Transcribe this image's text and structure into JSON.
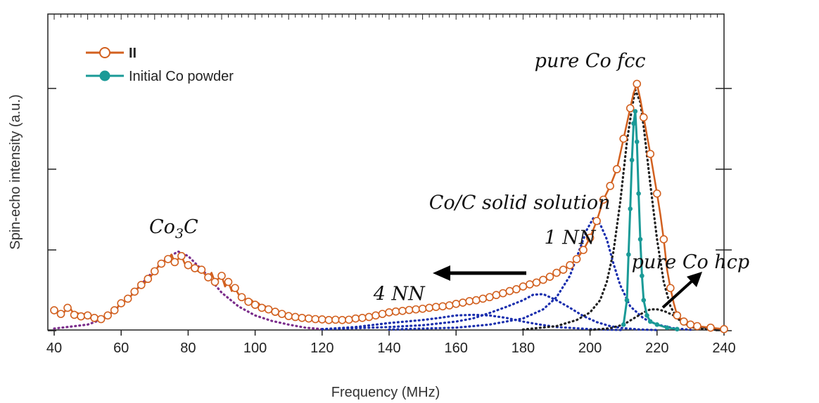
{
  "chart_data": {
    "type": "line",
    "title": "",
    "xlabel": "Frequency (MHz)",
    "ylabel": "Spin-echo intensity (a.u.)",
    "xlim": [
      40,
      240
    ],
    "ylim": [
      0,
      1
    ],
    "x_ticks": [
      "40",
      "60",
      "80",
      "100",
      "120",
      "140",
      "160",
      "180",
      "200",
      "220",
      "240"
    ],
    "legend_position": "top-left",
    "grid": false,
    "series": [
      {
        "name": "II",
        "style": "line-open-markers",
        "color": "#d2601f",
        "points": [
          [
            40,
            0.067
          ],
          [
            41,
            0.058
          ],
          [
            42,
            0.055
          ],
          [
            43,
            0.061
          ],
          [
            44,
            0.075
          ],
          [
            45,
            0.07
          ],
          [
            46,
            0.052
          ],
          [
            47,
            0.058
          ],
          [
            48,
            0.047
          ],
          [
            49,
            0.055
          ],
          [
            50,
            0.05
          ],
          [
            51,
            0.04
          ],
          [
            52,
            0.042
          ],
          [
            53,
            0.035
          ],
          [
            54,
            0.038
          ],
          [
            55,
            0.045
          ],
          [
            56,
            0.05
          ],
          [
            57,
            0.058
          ],
          [
            58,
            0.067
          ],
          [
            59,
            0.078
          ],
          [
            60,
            0.09
          ],
          [
            61,
            0.095
          ],
          [
            62,
            0.105
          ],
          [
            63,
            0.115
          ],
          [
            64,
            0.128
          ],
          [
            65,
            0.14
          ],
          [
            66,
            0.15
          ],
          [
            67,
            0.155
          ],
          [
            68,
            0.17
          ],
          [
            69,
            0.18
          ],
          [
            70,
            0.195
          ],
          [
            71,
            0.21
          ],
          [
            72,
            0.22
          ],
          [
            73,
            0.228
          ],
          [
            74,
            0.235
          ],
          [
            75,
            0.25
          ],
          [
            76,
            0.225
          ],
          [
            77,
            0.235
          ],
          [
            78,
            0.245
          ],
          [
            79,
            0.22
          ],
          [
            80,
            0.215
          ],
          [
            81,
            0.21
          ],
          [
            82,
            0.205
          ],
          [
            83,
            0.195
          ],
          [
            84,
            0.2
          ],
          [
            85,
            0.185
          ],
          [
            86,
            0.175
          ],
          [
            87,
            0.19
          ],
          [
            88,
            0.16
          ],
          [
            89,
            0.17
          ],
          [
            90,
            0.18
          ],
          [
            91,
            0.145
          ],
          [
            92,
            0.16
          ],
          [
            93,
            0.13
          ],
          [
            94,
            0.14
          ],
          [
            95,
            0.12
          ],
          [
            96,
            0.11
          ],
          [
            97,
            0.105
          ],
          [
            98,
            0.095
          ],
          [
            99,
            0.1
          ],
          [
            100,
            0.085
          ],
          [
            101,
            0.09
          ],
          [
            102,
            0.075
          ],
          [
            103,
            0.08
          ],
          [
            104,
            0.07
          ],
          [
            105,
            0.065
          ],
          [
            106,
            0.062
          ],
          [
            107,
            0.058
          ],
          [
            108,
            0.055
          ],
          [
            109,
            0.05
          ],
          [
            110,
            0.048
          ],
          [
            112,
            0.045
          ],
          [
            114,
            0.042
          ],
          [
            116,
            0.04
          ],
          [
            118,
            0.038
          ],
          [
            120,
            0.037
          ],
          [
            122,
            0.035
          ],
          [
            124,
            0.036
          ],
          [
            126,
            0.035
          ],
          [
            128,
            0.036
          ],
          [
            130,
            0.04
          ],
          [
            132,
            0.042
          ],
          [
            134,
            0.045
          ],
          [
            136,
            0.05
          ],
          [
            138,
            0.055
          ],
          [
            140,
            0.06
          ],
          [
            142,
            0.063
          ],
          [
            144,
            0.065
          ],
          [
            146,
            0.068
          ],
          [
            148,
            0.07
          ],
          [
            150,
            0.072
          ],
          [
            152,
            0.075
          ],
          [
            154,
            0.078
          ],
          [
            156,
            0.08
          ],
          [
            158,
            0.083
          ],
          [
            160,
            0.088
          ],
          [
            162,
            0.092
          ],
          [
            164,
            0.097
          ],
          [
            166,
            0.1
          ],
          [
            168,
            0.105
          ],
          [
            170,
            0.11
          ],
          [
            172,
            0.117
          ],
          [
            174,
            0.123
          ],
          [
            176,
            0.13
          ],
          [
            178,
            0.136
          ],
          [
            180,
            0.145
          ],
          [
            182,
            0.152
          ],
          [
            184,
            0.158
          ],
          [
            186,
            0.167
          ],
          [
            188,
            0.177
          ],
          [
            190,
            0.19
          ],
          [
            192,
            0.2
          ],
          [
            194,
            0.215
          ],
          [
            196,
            0.235
          ],
          [
            198,
            0.265
          ],
          [
            200,
            0.305
          ],
          [
            202,
            0.36
          ],
          [
            204,
            0.43
          ],
          [
            206,
            0.475
          ],
          [
            208,
            0.53
          ],
          [
            210,
            0.63
          ],
          [
            212,
            0.73
          ],
          [
            213,
            0.78
          ],
          [
            214,
            0.81
          ],
          [
            215,
            0.76
          ],
          [
            216,
            0.7
          ],
          [
            218,
            0.58
          ],
          [
            220,
            0.45
          ],
          [
            221,
            0.38
          ],
          [
            222,
            0.3
          ],
          [
            223,
            0.2
          ],
          [
            224,
            0.14
          ],
          [
            225,
            0.09
          ],
          [
            226,
            0.05
          ],
          [
            228,
            0.03
          ],
          [
            230,
            0.02
          ],
          [
            232,
            0.015
          ],
          [
            236,
            0.01
          ],
          [
            240,
            0.005
          ]
        ]
      },
      {
        "name": "Initial Co powder",
        "style": "line-filled-markers",
        "color": "#1a9a97",
        "points": [
          [
            210,
            0.02
          ],
          [
            211,
            0.1
          ],
          [
            211.5,
            0.25
          ],
          [
            212,
            0.4
          ],
          [
            212.5,
            0.56
          ],
          [
            213,
            0.68
          ],
          [
            213.5,
            0.72
          ],
          [
            214,
            0.62
          ],
          [
            214.5,
            0.45
          ],
          [
            215,
            0.3
          ],
          [
            215.5,
            0.18
          ],
          [
            216,
            0.1
          ],
          [
            217,
            0.05
          ],
          [
            218,
            0.03
          ],
          [
            220,
            0.02
          ],
          [
            223,
            0.01
          ],
          [
            226,
            0.005
          ]
        ]
      },
      {
        "name": "Co3C",
        "style": "dotted",
        "color": "#7b2d8b",
        "points": [
          [
            40,
            0.007
          ],
          [
            50,
            0.02
          ],
          [
            55,
            0.04
          ],
          [
            60,
            0.085
          ],
          [
            65,
            0.14
          ],
          [
            70,
            0.2
          ],
          [
            74,
            0.24
          ],
          [
            77,
            0.26
          ],
          [
            80,
            0.245
          ],
          [
            85,
            0.19
          ],
          [
            90,
            0.125
          ],
          [
            95,
            0.08
          ],
          [
            100,
            0.05
          ],
          [
            105,
            0.032
          ],
          [
            110,
            0.02
          ],
          [
            115,
            0.01
          ],
          [
            120,
            0.005
          ]
        ]
      },
      {
        "name": "4 NN",
        "style": "dotted",
        "color": "#1a2fae",
        "points": [
          [
            120,
            0.005
          ],
          [
            130,
            0.012
          ],
          [
            140,
            0.025
          ],
          [
            150,
            0.035
          ],
          [
            155,
            0.042
          ],
          [
            160,
            0.05
          ],
          [
            165,
            0.052
          ],
          [
            170,
            0.05
          ],
          [
            175,
            0.042
          ],
          [
            180,
            0.03
          ],
          [
            185,
            0.02
          ],
          [
            190,
            0.012
          ],
          [
            200,
            0.005
          ],
          [
            210,
            0.002
          ]
        ]
      },
      {
        "name": "1 NN",
        "style": "dotted",
        "color": "#1a2fae",
        "points": [
          [
            120,
            0.005
          ],
          [
            130,
            0.008
          ],
          [
            140,
            0.012
          ],
          [
            150,
            0.018
          ],
          [
            160,
            0.03
          ],
          [
            165,
            0.04
          ],
          [
            170,
            0.058
          ],
          [
            175,
            0.078
          ],
          [
            180,
            0.1
          ],
          [
            183,
            0.118
          ],
          [
            186,
            0.12
          ],
          [
            190,
            0.1
          ],
          [
            194,
            0.075
          ],
          [
            198,
            0.048
          ],
          [
            202,
            0.028
          ],
          [
            206,
            0.015
          ],
          [
            210,
            0.008
          ],
          [
            215,
            0.004
          ],
          [
            220,
            0.002
          ]
        ]
      },
      {
        "name": "Co/C solid solution",
        "style": "dotted",
        "color": "#1a2fae",
        "points": [
          [
            140,
            0.004
          ],
          [
            160,
            0.01
          ],
          [
            170,
            0.02
          ],
          [
            180,
            0.04
          ],
          [
            186,
            0.07
          ],
          [
            190,
            0.11
          ],
          [
            194,
            0.18
          ],
          [
            197,
            0.27
          ],
          [
            199,
            0.33
          ],
          [
            201,
            0.37
          ],
          [
            203,
            0.35
          ],
          [
            205,
            0.3
          ],
          [
            207,
            0.22
          ],
          [
            209,
            0.15
          ],
          [
            212,
            0.08
          ],
          [
            216,
            0.04
          ],
          [
            220,
            0.02
          ],
          [
            225,
            0.008
          ],
          [
            230,
            0.003
          ]
        ]
      },
      {
        "name": "pure Co fcc",
        "style": "dotted",
        "color": "#222222",
        "points": [
          [
            180,
            0.004
          ],
          [
            190,
            0.015
          ],
          [
            196,
            0.035
          ],
          [
            200,
            0.06
          ],
          [
            203,
            0.1
          ],
          [
            205,
            0.16
          ],
          [
            207,
            0.26
          ],
          [
            209,
            0.42
          ],
          [
            211,
            0.62
          ],
          [
            212.5,
            0.73
          ],
          [
            213.5,
            0.79
          ],
          [
            215,
            0.75
          ],
          [
            216,
            0.67
          ],
          [
            218,
            0.48
          ],
          [
            220,
            0.3
          ],
          [
            222,
            0.16
          ],
          [
            224,
            0.08
          ],
          [
            226,
            0.04
          ],
          [
            230,
            0.012
          ],
          [
            235,
            0.004
          ],
          [
            240,
            0.002
          ]
        ]
      },
      {
        "name": "pure Co hcp",
        "style": "dotted",
        "color": "#222222",
        "points": [
          [
            200,
            0.002
          ],
          [
            206,
            0.008
          ],
          [
            210,
            0.02
          ],
          [
            213,
            0.04
          ],
          [
            216,
            0.06
          ],
          [
            218,
            0.07
          ],
          [
            220,
            0.07
          ],
          [
            222,
            0.065
          ],
          [
            225,
            0.05
          ],
          [
            228,
            0.03
          ],
          [
            232,
            0.015
          ],
          [
            236,
            0.006
          ],
          [
            240,
            0.002
          ]
        ]
      }
    ],
    "annotations": [
      {
        "text": "pure Co fcc",
        "x": 200,
        "y": 0.865
      },
      {
        "text": "Co/C solid solution",
        "x": 179,
        "y": 0.4
      },
      {
        "text": "1 NN",
        "x": 194,
        "y": 0.285
      },
      {
        "text": "4 NN",
        "x": 143,
        "y": 0.1
      },
      {
        "text": "pure Co hcp",
        "x": 230,
        "y": 0.205
      }
    ]
  },
  "legend": {
    "items": [
      {
        "label": "II",
        "color": "#d2601f"
      },
      {
        "label": "Initial Co powder",
        "color": "#1a9a97"
      }
    ]
  }
}
